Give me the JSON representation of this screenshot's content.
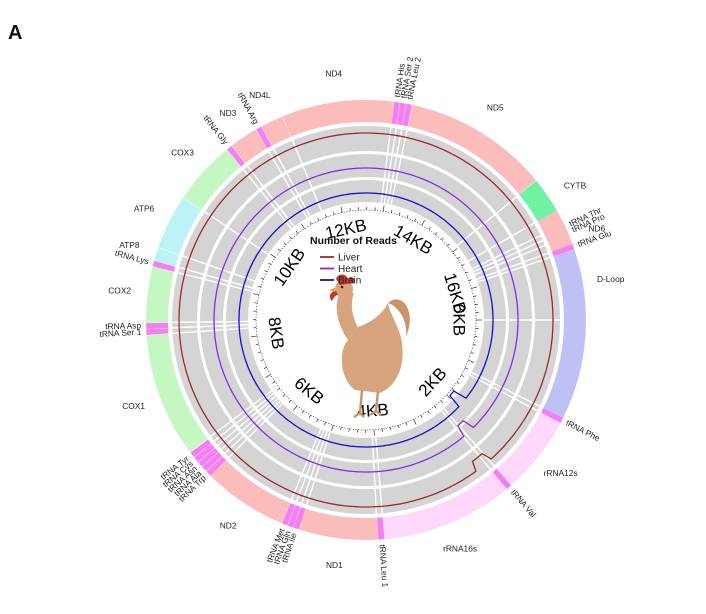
{
  "panel_label": "A",
  "chart_data": {
    "type": "circos",
    "genome_length_bp": 16775,
    "kb_ticks": [
      {
        "label": "0KB",
        "bp": 0
      },
      {
        "label": "2KB",
        "bp": 2000
      },
      {
        "label": "4KB",
        "bp": 4000
      },
      {
        "label": "6KB",
        "bp": 6000
      },
      {
        "label": "8KB",
        "bp": 8000
      },
      {
        "label": "10KB",
        "bp": 10000
      },
      {
        "label": "12KB",
        "bp": 12000
      },
      {
        "label": "14KB",
        "bp": 14000
      },
      {
        "label": "16KB",
        "bp": 16000
      }
    ],
    "legend": {
      "title": "Number of Reads",
      "entries": [
        {
          "name": "Liver",
          "color": "#9b2a2a"
        },
        {
          "name": "Heart",
          "color": "#8a2be2"
        },
        {
          "name": "Brain",
          "color": "#1010d0"
        }
      ]
    },
    "feature_colors": {
      "rRNA": "#fdd8fb",
      "tRNA": "#f47ff2",
      "D-loop": "#bfc1f4",
      "ND": "#fbbcbc",
      "CYTB": "#6ff2a4",
      "COX": "#c4f7c2",
      "ATP": "#bdf3f7"
    },
    "features": [
      {
        "label": "D-Loop",
        "start": 15900,
        "end": 16775,
        "class": "D-loop"
      },
      {
        "label": "D-Loop",
        "start": 0,
        "end": 1230,
        "class": "D-loop",
        "hide_label": true
      },
      {
        "label": "tRNA Phe",
        "start": 1230,
        "end": 1300,
        "class": "tRNA"
      },
      {
        "label": "rRNA12s",
        "start": 1300,
        "end": 2270,
        "class": "rRNA"
      },
      {
        "label": "tRNA Val",
        "start": 2270,
        "end": 2340,
        "class": "tRNA"
      },
      {
        "label": "rRNA16s",
        "start": 2340,
        "end": 3970,
        "class": "rRNA"
      },
      {
        "label": "tRNA Leu 1",
        "start": 3970,
        "end": 4045,
        "class": "tRNA"
      },
      {
        "label": "ND1",
        "start": 4050,
        "end": 5020,
        "class": "ND"
      },
      {
        "label": "tRNA Ile",
        "start": 5022,
        "end": 5090,
        "class": "tRNA"
      },
      {
        "label": "tRNA Gln",
        "start": 5095,
        "end": 5165,
        "class": "tRNA"
      },
      {
        "label": "tRNA Met",
        "start": 5170,
        "end": 5240,
        "class": "tRNA"
      },
      {
        "label": "ND2",
        "start": 5245,
        "end": 6290,
        "class": "ND"
      },
      {
        "label": "tRNA Trp",
        "start": 6290,
        "end": 6360,
        "class": "tRNA"
      },
      {
        "label": "tRNA Ala",
        "start": 6365,
        "end": 6435,
        "class": "tRNA"
      },
      {
        "label": "tRNA Asn",
        "start": 6440,
        "end": 6510,
        "class": "tRNA"
      },
      {
        "label": "tRNA Cys",
        "start": 6515,
        "end": 6585,
        "class": "tRNA"
      },
      {
        "label": "tRNA Tyr",
        "start": 6590,
        "end": 6660,
        "class": "tRNA"
      },
      {
        "label": "COX1",
        "start": 6670,
        "end": 8200,
        "class": "COX"
      },
      {
        "label": "tRNA Ser 1",
        "start": 8205,
        "end": 8275,
        "class": "tRNA"
      },
      {
        "label": "tRNA Asp",
        "start": 8280,
        "end": 8350,
        "class": "tRNA"
      },
      {
        "label": "COX2",
        "start": 8355,
        "end": 9040,
        "class": "COX"
      },
      {
        "label": "tRNA Lys",
        "start": 9045,
        "end": 9115,
        "class": "tRNA"
      },
      {
        "label": "ATP8",
        "start": 9120,
        "end": 9280,
        "class": "ATP"
      },
      {
        "label": "ATP6",
        "start": 9285,
        "end": 9960,
        "class": "ATP"
      },
      {
        "label": "COX3",
        "start": 9965,
        "end": 10750,
        "class": "COX"
      },
      {
        "label": "tRNA Gly",
        "start": 10755,
        "end": 10825,
        "class": "tRNA"
      },
      {
        "label": "ND3",
        "start": 10830,
        "end": 11180,
        "class": "ND"
      },
      {
        "label": "tRNA Arg",
        "start": 11185,
        "end": 11255,
        "class": "tRNA"
      },
      {
        "label": "ND4L",
        "start": 11260,
        "end": 11540,
        "class": "ND"
      },
      {
        "label": "ND4",
        "start": 11545,
        "end": 12920,
        "class": "ND"
      },
      {
        "label": "tRNA His",
        "start": 12925,
        "end": 12995,
        "class": "tRNA"
      },
      {
        "label": "tRNA Ser 2",
        "start": 13000,
        "end": 13070,
        "class": "tRNA"
      },
      {
        "label": "tRNA Leu 2",
        "start": 13075,
        "end": 13145,
        "class": "tRNA"
      },
      {
        "label": "ND5",
        "start": 13150,
        "end": 14940,
        "class": "ND"
      },
      {
        "label": "CYTB",
        "start": 14945,
        "end": 15570,
        "class": "CYTB"
      },
      {
        "label": "tRNA Thr",
        "start": 15573,
        "end": 15643,
        "class": "tRNA"
      },
      {
        "label": "tRNA Pro",
        "start": 15648,
        "end": 15718,
        "class": "tRNA"
      },
      {
        "label": "ND6",
        "start": 15722,
        "end": 15830,
        "class": "ND"
      },
      {
        "label": "ND6",
        "start": 15380,
        "end": 15850,
        "class": "ND",
        "hide_label": true
      },
      {
        "label": "tRNA Glu",
        "start": 15835,
        "end": 15900,
        "class": "tRNA"
      }
    ]
  }
}
